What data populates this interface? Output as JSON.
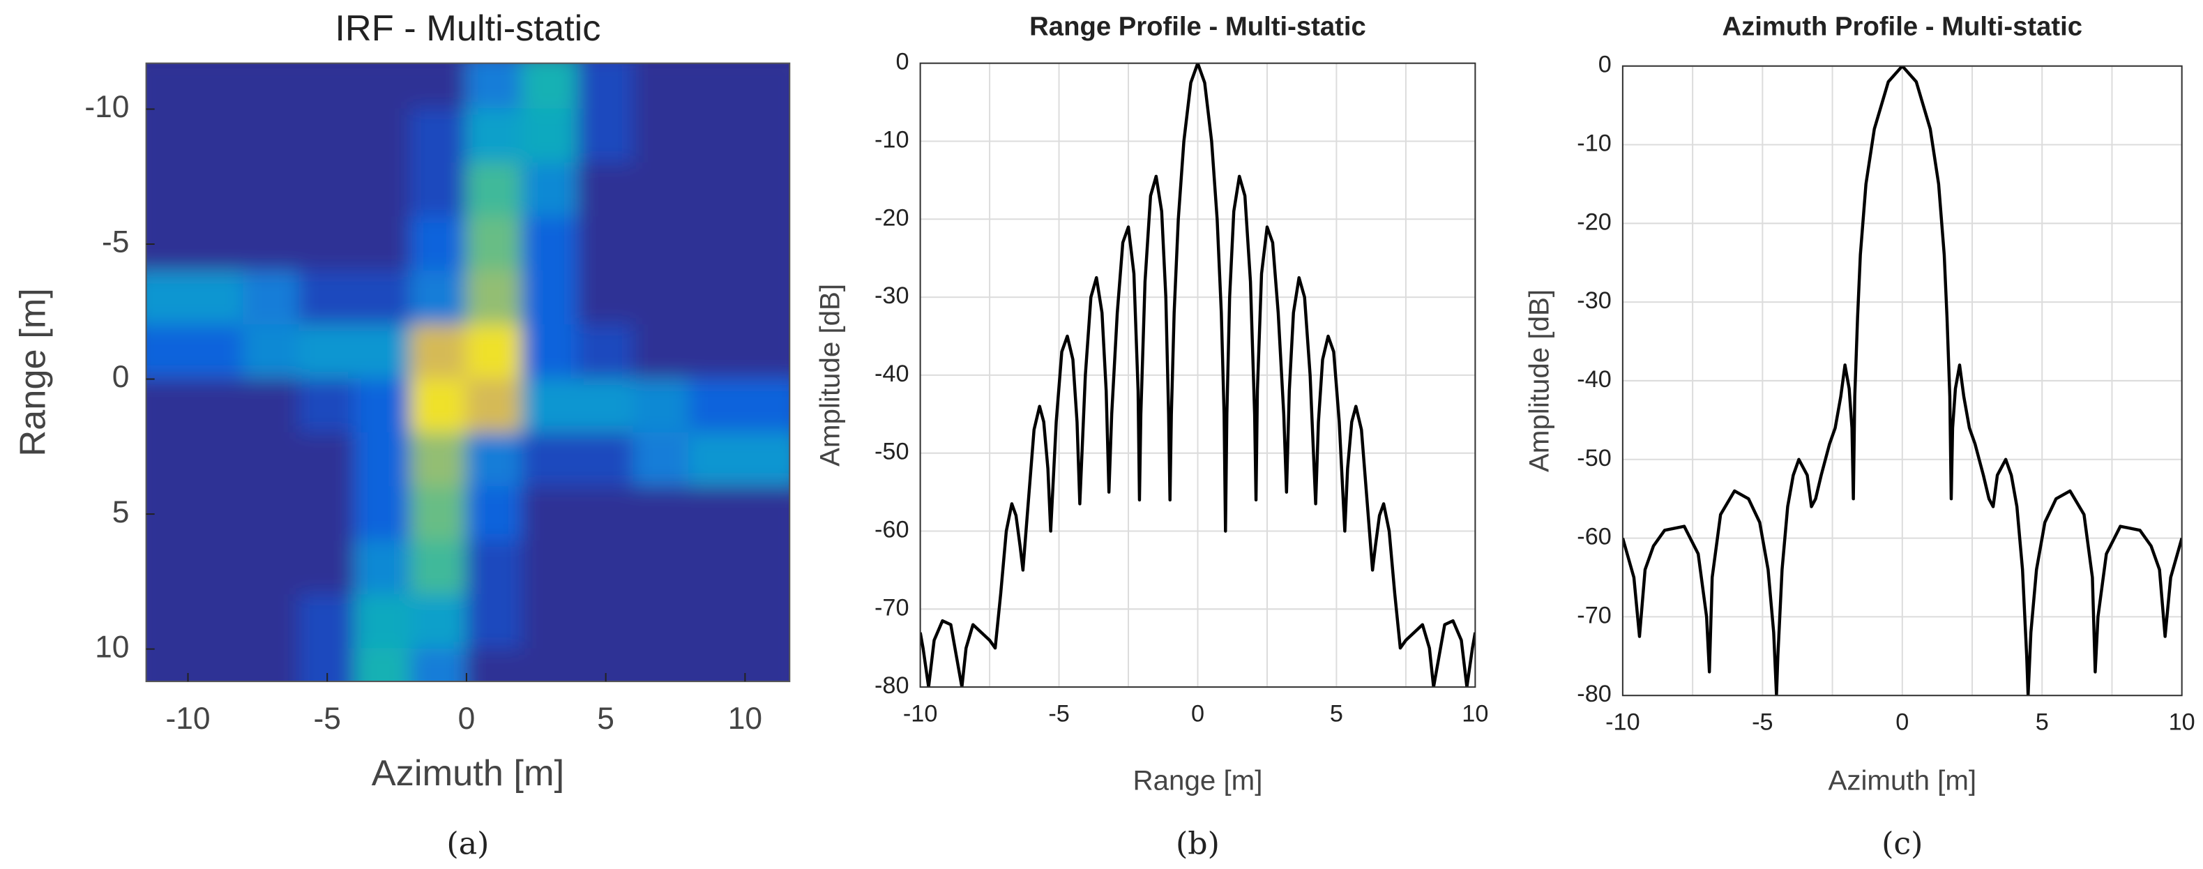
{
  "chart_data": [
    {
      "type": "heatmap",
      "title": "IRF - Multi-static",
      "xlabel": "Azimuth [m]",
      "ylabel": "Range [m]",
      "caption": "(a)",
      "colormap": "parula",
      "x": [
        -11,
        -9,
        -7,
        -5,
        -3,
        -1,
        1,
        3,
        5,
        7,
        9,
        11
      ],
      "y": [
        -11,
        -9,
        -7,
        -5,
        -3,
        -1,
        1,
        3,
        5,
        7,
        9,
        11
      ],
      "z": [
        [
          0.02,
          0.02,
          0.02,
          0.02,
          0.02,
          0.02,
          0.25,
          0.5,
          0.08,
          0.02,
          0.02,
          0.02
        ],
        [
          0.02,
          0.02,
          0.02,
          0.02,
          0.02,
          0.08,
          0.4,
          0.45,
          0.08,
          0.02,
          0.02,
          0.02
        ],
        [
          0.02,
          0.02,
          0.02,
          0.02,
          0.02,
          0.08,
          0.58,
          0.3,
          0.02,
          0.02,
          0.02,
          0.02
        ],
        [
          0.02,
          0.02,
          0.02,
          0.02,
          0.02,
          0.15,
          0.65,
          0.15,
          0.02,
          0.02,
          0.02,
          0.02
        ],
        [
          0.35,
          0.35,
          0.25,
          0.08,
          0.08,
          0.25,
          0.72,
          0.15,
          0.02,
          0.02,
          0.02,
          0.02
        ],
        [
          0.15,
          0.15,
          0.3,
          0.35,
          0.35,
          0.85,
          0.95,
          0.15,
          0.08,
          0.02,
          0.02,
          0.02
        ],
        [
          0.02,
          0.02,
          0.02,
          0.08,
          0.15,
          0.95,
          0.85,
          0.35,
          0.35,
          0.3,
          0.15,
          0.15
        ],
        [
          0.02,
          0.02,
          0.02,
          0.02,
          0.15,
          0.72,
          0.25,
          0.08,
          0.08,
          0.25,
          0.35,
          0.35
        ],
        [
          0.02,
          0.02,
          0.02,
          0.02,
          0.15,
          0.65,
          0.15,
          0.02,
          0.02,
          0.02,
          0.02,
          0.02
        ],
        [
          0.02,
          0.02,
          0.02,
          0.02,
          0.3,
          0.58,
          0.08,
          0.02,
          0.02,
          0.02,
          0.02,
          0.02
        ],
        [
          0.02,
          0.02,
          0.02,
          0.08,
          0.45,
          0.4,
          0.08,
          0.02,
          0.02,
          0.02,
          0.02,
          0.02
        ],
        [
          0.02,
          0.02,
          0.02,
          0.08,
          0.5,
          0.25,
          0.02,
          0.02,
          0.02,
          0.02,
          0.02,
          0.02
        ]
      ],
      "xlim": [
        -11.5,
        11.6
      ],
      "ylim": [
        11.2,
        -11.7
      ],
      "xticks": [
        -10,
        -5,
        0,
        5,
        10
      ],
      "yticks": [
        -10,
        -5,
        0,
        5,
        10
      ]
    },
    {
      "type": "line",
      "title": "Range Profile - Multi-static",
      "xlabel": "Range [m]",
      "ylabel": "Amplitude [dB]",
      "caption": "(b)",
      "color": "#000000",
      "grid": true,
      "x": [
        -10,
        -9.9,
        -9.7,
        -9.5,
        -9.2,
        -8.9,
        -8.7,
        -8.5,
        -8.35,
        -8.1,
        -7.8,
        -7.5,
        -7.3,
        -7.1,
        -6.9,
        -6.7,
        -6.55,
        -6.4,
        -6.3,
        -6.1,
        -5.9,
        -5.7,
        -5.55,
        -5.4,
        -5.3,
        -5.1,
        -4.9,
        -4.7,
        -4.5,
        -4.35,
        -4.25,
        -4.05,
        -3.85,
        -3.65,
        -3.45,
        -3.3,
        -3.2,
        -3.1,
        -2.9,
        -2.7,
        -2.5,
        -2.3,
        -2.15,
        -2.1,
        -2.05,
        -1.9,
        -1.7,
        -1.5,
        -1.3,
        -1.15,
        -1.05,
        -1.0,
        -0.95,
        -0.85,
        -0.7,
        -0.5,
        -0.25,
        0,
        0.25,
        0.5,
        0.7,
        0.85,
        0.95,
        1.0,
        1.05,
        1.15,
        1.3,
        1.5,
        1.7,
        1.9,
        2.05,
        2.1,
        2.15,
        2.3,
        2.5,
        2.7,
        2.9,
        3.1,
        3.2,
        3.3,
        3.45,
        3.65,
        3.85,
        4.05,
        4.25,
        4.35,
        4.5,
        4.7,
        4.9,
        5.1,
        5.3,
        5.4,
        5.55,
        5.7,
        5.9,
        6.1,
        6.3,
        6.4,
        6.55,
        6.7,
        6.9,
        7.1,
        7.3,
        7.5,
        7.8,
        8.1,
        8.35,
        8.5,
        8.7,
        8.9,
        9.2,
        9.5,
        9.7,
        9.9,
        10
      ],
      "values": [
        -73,
        -75,
        -80,
        -74,
        -71.5,
        -72,
        -76,
        -80,
        -75,
        -72,
        -73,
        -74,
        -75,
        -68,
        -60,
        -56.5,
        -58,
        -62,
        -65,
        -56,
        -47,
        -44,
        -46,
        -52,
        -60,
        -46,
        -37,
        -35,
        -38,
        -46,
        -56.5,
        -40,
        -30,
        -27.5,
        -32,
        -42,
        -55,
        -45,
        -32,
        -23,
        -21,
        -27,
        -42,
        -56,
        -45,
        -28,
        -17,
        -14.5,
        -19,
        -30,
        -45,
        -56,
        -45,
        -32,
        -20,
        -10,
        -2.5,
        0,
        -2.5,
        -10,
        -20,
        -32,
        -45,
        -60,
        -45,
        -30,
        -19,
        -14.5,
        -17,
        -28,
        -45,
        -56,
        -42,
        -27,
        -21,
        -23,
        -32,
        -45,
        -55,
        -42,
        -32,
        -27.5,
        -30,
        -40,
        -56.5,
        -46,
        -38,
        -35,
        -37,
        -46,
        -60,
        -52,
        -46,
        -44,
        -47,
        -56,
        -65,
        -62,
        -58,
        -56.5,
        -60,
        -68,
        -75,
        -74,
        -73,
        -72,
        -75,
        -80,
        -76,
        -72,
        -71.5,
        -74,
        -80,
        -75,
        -73
      ],
      "xlim": [
        -10,
        10
      ],
      "ylim": [
        -80,
        0
      ],
      "xticks": [
        -10,
        -5,
        0,
        5,
        10
      ],
      "xminorticks": [
        -7.5,
        -2.5,
        2.5,
        7.5
      ],
      "yticks": [
        0,
        -10,
        -20,
        -30,
        -40,
        -50,
        -60,
        -70,
        -80
      ]
    },
    {
      "type": "line",
      "title": "Azimuth Profile - Multi-static",
      "xlabel": "Azimuth [m]",
      "ylabel": "Amplitude [dB]",
      "caption": "(c)",
      "color": "#000000",
      "grid": true,
      "x": [
        -10,
        -9.6,
        -9.4,
        -9.2,
        -8.9,
        -8.5,
        -7.8,
        -7.3,
        -7,
        -6.9,
        -6.8,
        -6.5,
        -6,
        -5.5,
        -5.1,
        -4.8,
        -4.6,
        -4.5,
        -4.45,
        -4.3,
        -4.1,
        -3.9,
        -3.7,
        -3.4,
        -3.25,
        -3.1,
        -2.9,
        -2.6,
        -2.4,
        -2.2,
        -2.05,
        -1.9,
        -1.8,
        -1.75,
        -1.7,
        -1.6,
        -1.5,
        -1.3,
        -1,
        -0.5,
        0,
        0.5,
        1,
        1.3,
        1.5,
        1.6,
        1.7,
        1.75,
        1.8,
        1.9,
        2.05,
        2.2,
        2.4,
        2.6,
        2.9,
        3.1,
        3.25,
        3.4,
        3.7,
        3.9,
        4.1,
        4.3,
        4.45,
        4.5,
        4.6,
        4.8,
        5.1,
        5.5,
        6,
        6.5,
        6.8,
        6.9,
        7,
        7.3,
        7.8,
        8.5,
        8.9,
        9.2,
        9.4,
        9.6,
        10
      ],
      "values": [
        -60,
        -65,
        -72.5,
        -64,
        -61,
        -59,
        -58.5,
        -62,
        -70,
        -77,
        -65,
        -57,
        -54,
        -55,
        -58,
        -64,
        -72,
        -80,
        -75,
        -64,
        -56,
        -52,
        -50,
        -52,
        -56,
        -55,
        -52,
        -48,
        -46,
        -42,
        -38,
        -41,
        -46,
        -55,
        -42,
        -32,
        -24,
        -15,
        -8,
        -2,
        0,
        -2,
        -8,
        -15,
        -24,
        -32,
        -42,
        -55,
        -46,
        -41,
        -38,
        -42,
        -46,
        -48,
        -52,
        -55,
        -56,
        -52,
        -50,
        -52,
        -56,
        -64,
        -75,
        -80,
        -72,
        -64,
        -58,
        -55,
        -54,
        -57,
        -65,
        -77,
        -70,
        -62,
        -58.5,
        -59,
        -61,
        -64,
        -72.5,
        -65,
        -60
      ],
      "xlim": [
        -10,
        10
      ],
      "ylim": [
        -80,
        0
      ],
      "xticks": [
        -10,
        -5,
        0,
        5,
        10
      ],
      "xminorticks": [
        -7.5,
        -2.5,
        2.5,
        7.5
      ],
      "yticks": [
        0,
        -10,
        -20,
        -30,
        -40,
        -50,
        -60,
        -70,
        -80
      ]
    }
  ]
}
